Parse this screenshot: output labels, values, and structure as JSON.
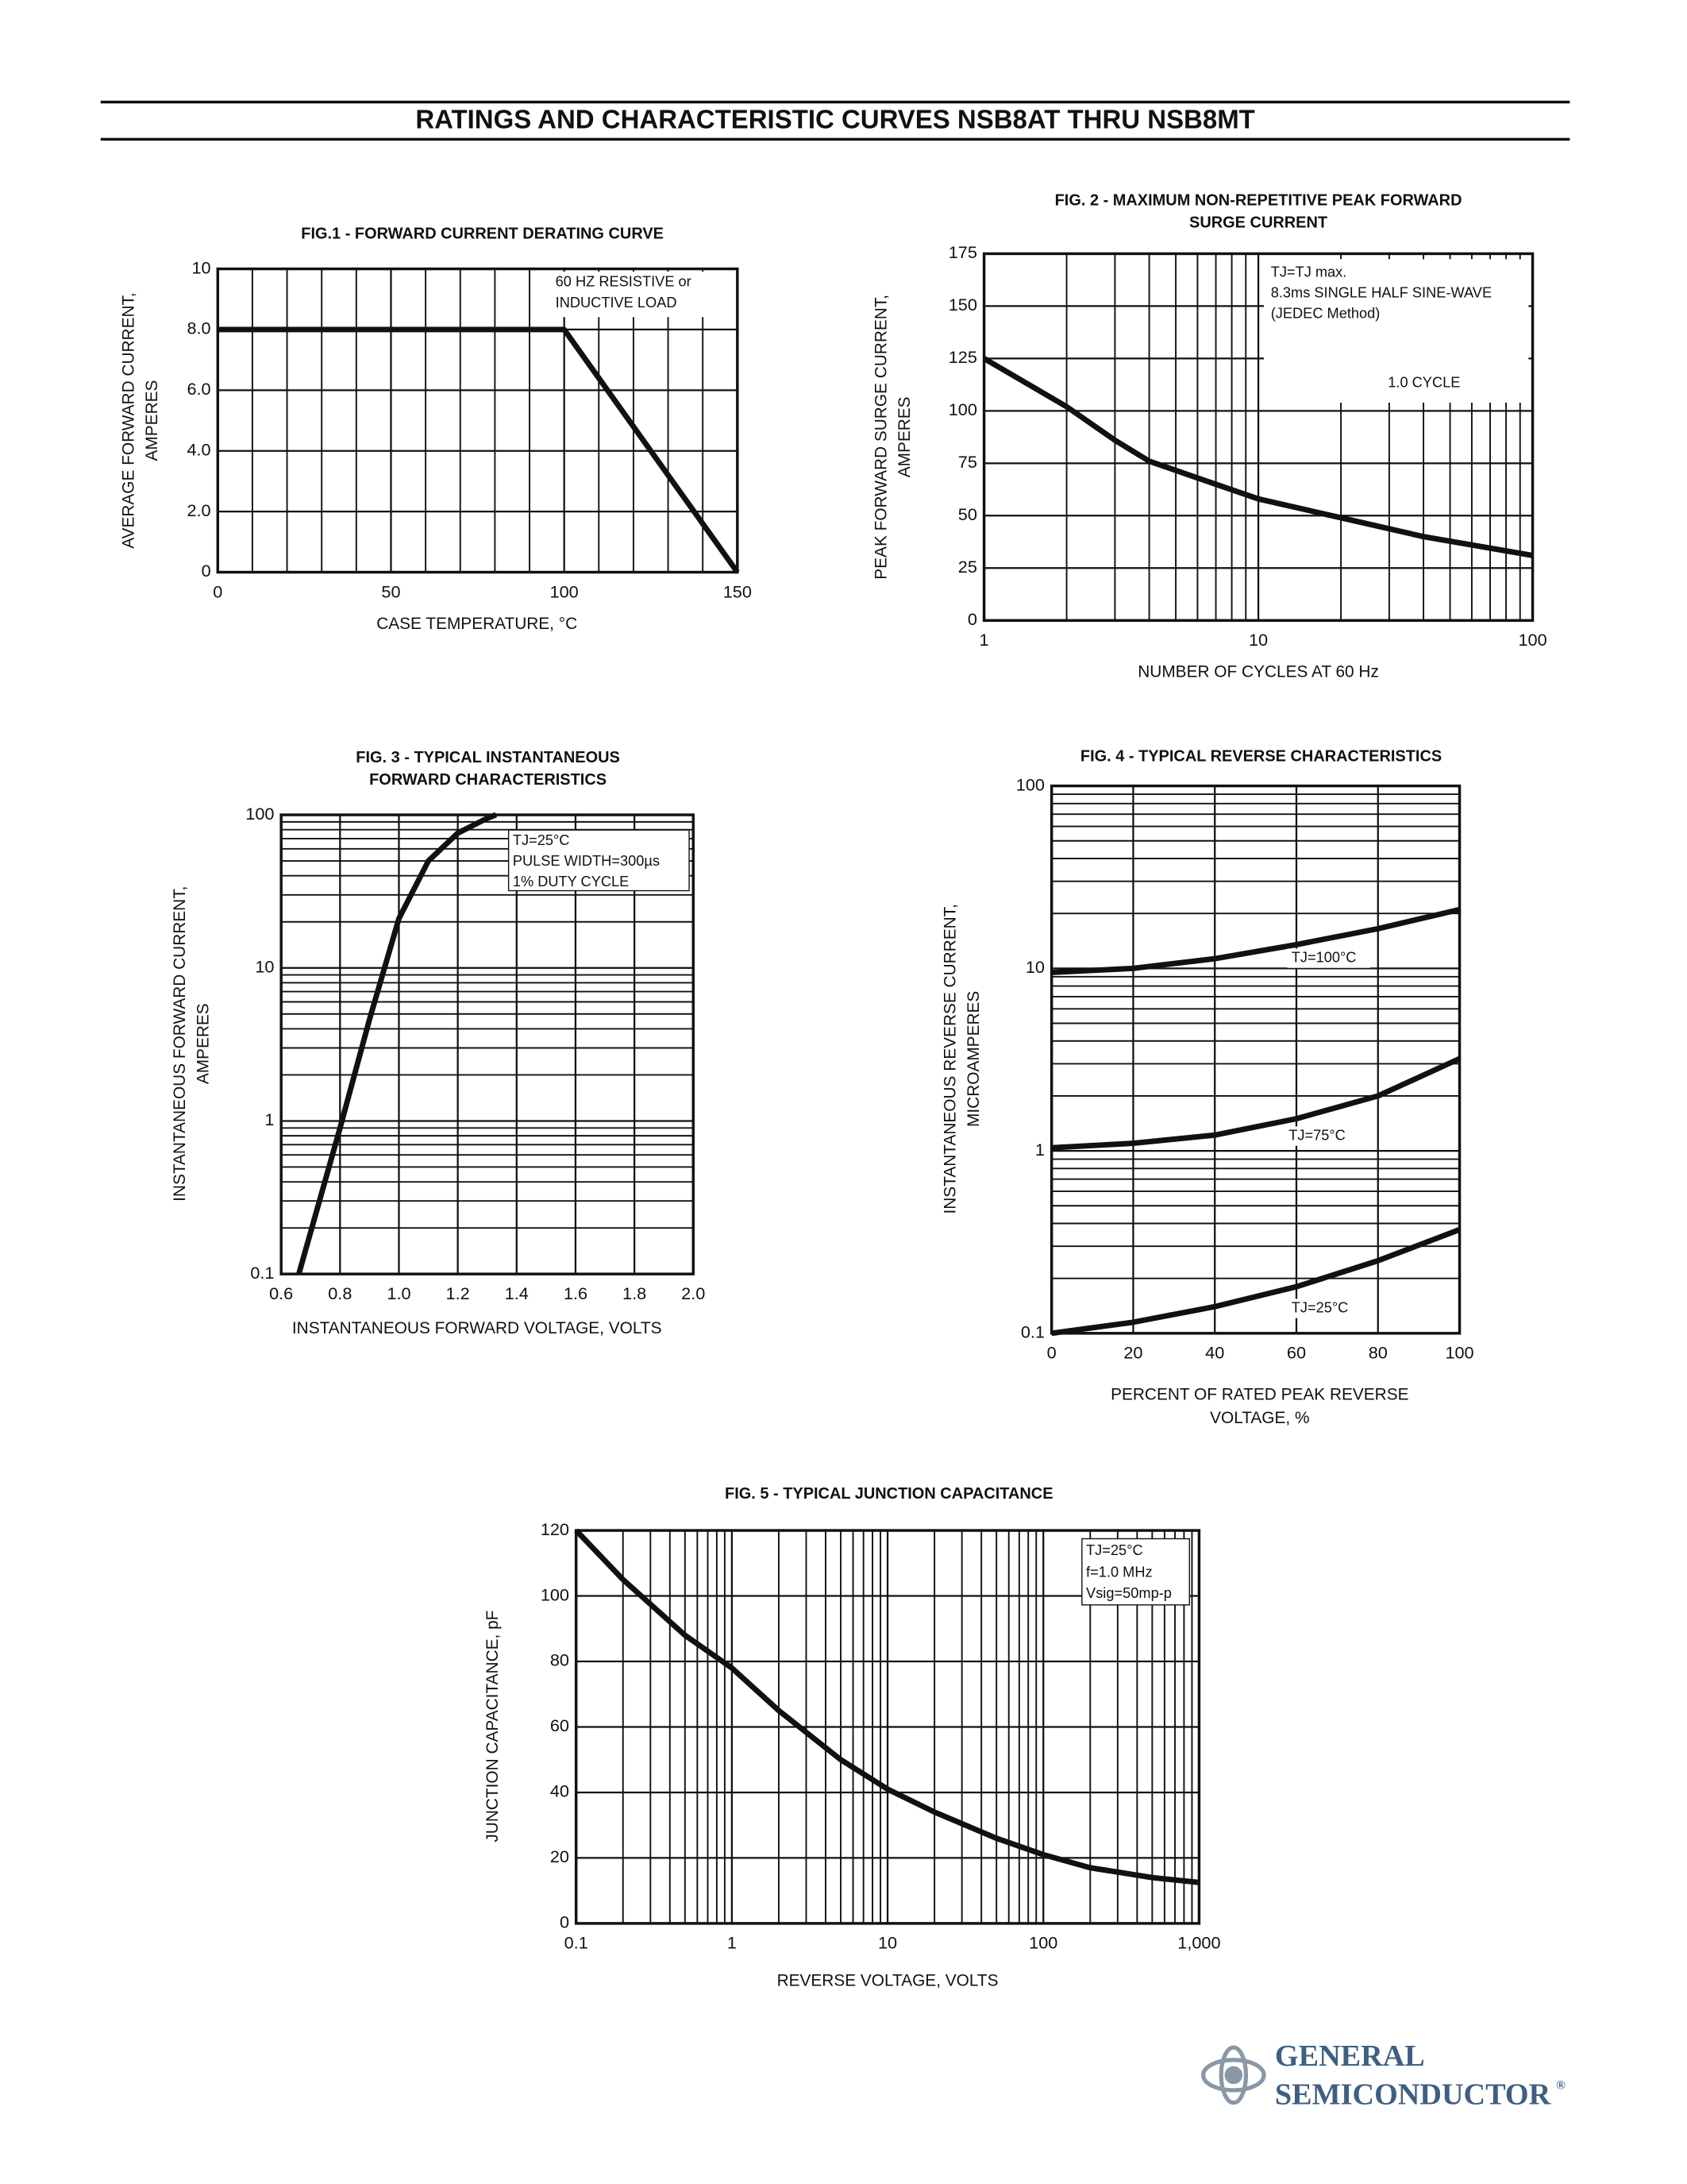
{
  "header": {
    "title": "RATINGS AND CHARACTERISTIC CURVES NSB8AT THRU NSB8MT"
  },
  "logo": {
    "line1": "GENERAL",
    "line2": "SEMICONDUCTOR",
    "mark": "®"
  },
  "chart_data": [
    {
      "type": "line",
      "title": [
        "FIG.1 - FORWARD CURRENT DERATING CURVE"
      ],
      "ylabel": [
        "AVERAGE FORWARD CURRENT,",
        "AMPERES"
      ],
      "xlabel": [
        "CASE TEMPERATURE, °C"
      ],
      "annotations": [
        "60 HZ RESISTIVE or",
        "INDUCTIVE LOAD"
      ],
      "x": [
        0,
        100,
        150
      ],
      "values": [
        8,
        8,
        0
      ],
      "color": "#111111",
      "xlim": [
        0,
        150
      ],
      "ylim": [
        0,
        10
      ],
      "xscale": "linear",
      "yscale": "linear",
      "xticks": [
        0,
        50,
        100,
        150
      ],
      "yticks": [
        0,
        {
          "value": 2,
          "label": "2.0"
        },
        {
          "value": 4,
          "label": "4.0"
        },
        {
          "value": 6,
          "label": "6.0"
        },
        {
          "value": 8,
          "label": "8.0"
        },
        10
      ],
      "xminor": [
        10,
        20,
        30,
        40,
        60,
        70,
        80,
        90,
        110,
        120,
        130,
        140
      ],
      "yminor": [],
      "grid": true
    },
    {
      "type": "line",
      "title": [
        "FIG. 2 - MAXIMUM NON-REPETITIVE PEAK FORWARD",
        "SURGE CURRENT"
      ],
      "ylabel": [
        "PEAK FORWARD SURGE CURRENT,",
        "AMPERES"
      ],
      "xlabel": [
        "NUMBER OF CYCLES AT 60 Hz"
      ],
      "annotations": [
        "TJ=TJ max.",
        "8.3ms SINGLE HALF SINE-WAVE",
        "(JEDEC Method)",
        "1.0 CYCLE"
      ],
      "x": [
        1,
        2,
        3,
        4,
        6,
        10,
        20,
        40,
        100
      ],
      "values": [
        125,
        102,
        86,
        76,
        68,
        58,
        49,
        40,
        31
      ],
      "color": "#111111",
      "xlim": [
        1,
        100
      ],
      "ylim": [
        0,
        175
      ],
      "xscale": "log",
      "yscale": "linear",
      "xticks": [
        1,
        10,
        100
      ],
      "yticks": [
        0,
        25,
        50,
        75,
        100,
        125,
        150,
        175
      ],
      "xminor": [
        2,
        3,
        4,
        5,
        6,
        7,
        8,
        9,
        20,
        30,
        40,
        50,
        60,
        70,
        80,
        90
      ],
      "yminor": [],
      "grid": true
    },
    {
      "type": "line",
      "title": [
        "FIG. 3 - TYPICAL INSTANTANEOUS",
        "FORWARD CHARACTERISTICS"
      ],
      "ylabel": [
        "INSTANTANEOUS FORWARD CURRENT,",
        "AMPERES"
      ],
      "xlabel": [
        "INSTANTANEOUS FORWARD VOLTAGE, VOLTS"
      ],
      "annotations": [
        "TJ=25°C",
        "PULSE WIDTH=300µs",
        "1% DUTY CYCLE"
      ],
      "x": [
        0.66,
        0.8,
        0.9,
        1.0,
        1.1,
        1.2,
        1.3,
        1.33
      ],
      "values": [
        0.1,
        0.9,
        4.6,
        21,
        50,
        76,
        95,
        100
      ],
      "color": "#111111",
      "xlim": [
        0.6,
        2.0
      ],
      "ylim": [
        0.1,
        100
      ],
      "xscale": "linear",
      "yscale": "log",
      "xticks": [
        0.6,
        0.8,
        {
          "value": 1,
          "label": "1.0"
        },
        1.2,
        1.4,
        1.6,
        1.8,
        {
          "value": 2,
          "label": "2.0"
        }
      ],
      "yticks": [
        0.1,
        1,
        10,
        100
      ],
      "xminor": [],
      "yminor": [
        0.2,
        0.3,
        0.4,
        0.5,
        0.6,
        0.7,
        0.8,
        0.9,
        2,
        3,
        4,
        5,
        6,
        7,
        8,
        9,
        20,
        30,
        40,
        50,
        60,
        70,
        80,
        90
      ],
      "grid": true
    },
    {
      "type": "line",
      "title": [
        "FIG. 4 - TYPICAL REVERSE CHARACTERISTICS"
      ],
      "ylabel": [
        "INSTANTANEOUS REVERSE CURRENT,",
        "MICROAMPERES"
      ],
      "xlabel": [
        "PERCENT OF RATED PEAK REVERSE",
        "VOLTAGE, %"
      ],
      "annotations": [],
      "x": [
        0,
        20,
        40,
        60,
        80,
        100
      ],
      "series": [
        {
          "name": "TJ=100°C",
          "color": "#111111",
          "values": [
            9.5,
            10,
            11.3,
            13.5,
            16.5,
            21
          ]
        },
        {
          "name": "TJ=75°C",
          "color": "#111111",
          "values": [
            1.04,
            1.1,
            1.22,
            1.5,
            2,
            3.2
          ]
        },
        {
          "name": "TJ=25°C",
          "color": "#111111",
          "values": [
            0.1,
            0.115,
            0.14,
            0.18,
            0.25,
            0.37
          ]
        }
      ],
      "xlim": [
        0,
        100
      ],
      "ylim": [
        0.1,
        100
      ],
      "xscale": "linear",
      "yscale": "log",
      "xticks": [
        0,
        20,
        40,
        60,
        80,
        100
      ],
      "yticks": [
        0.1,
        1,
        10,
        100
      ],
      "xminor": [],
      "yminor": [
        0.2,
        0.3,
        0.4,
        0.5,
        0.6,
        0.7,
        0.8,
        0.9,
        2,
        3,
        4,
        5,
        6,
        7,
        8,
        9,
        20,
        30,
        40,
        50,
        60,
        70,
        80,
        90
      ],
      "grid": true
    },
    {
      "type": "line",
      "title": [
        "FIG. 5 - TYPICAL JUNCTION CAPACITANCE"
      ],
      "ylabel": [
        "JUNCTION CAPACITANCE, pF"
      ],
      "xlabel": [
        "REVERSE VOLTAGE, VOLTS"
      ],
      "annotations": [
        "TJ=25°C",
        "f=1.0 MHz",
        "Vsig=50mp-p"
      ],
      "x": [
        0.1,
        0.2,
        0.5,
        1,
        2,
        5,
        10,
        20,
        50,
        100,
        200,
        500,
        1000
      ],
      "values": [
        120,
        105,
        88,
        78,
        65,
        50,
        41,
        34,
        26,
        21,
        17,
        14,
        12.5
      ],
      "color": "#111111",
      "xlim": [
        0.1,
        1000
      ],
      "ylim": [
        0,
        120
      ],
      "xscale": "log",
      "yscale": "linear",
      "xticks": [
        0.1,
        1,
        10,
        100,
        {
          "value": 1000,
          "label": "1,000"
        }
      ],
      "yticks": [
        0,
        20,
        40,
        60,
        80,
        100,
        120
      ],
      "xminor": [
        0.2,
        0.3,
        0.4,
        0.5,
        0.6,
        0.7,
        0.8,
        0.9,
        2,
        3,
        4,
        5,
        6,
        7,
        8,
        9,
        20,
        30,
        40,
        50,
        60,
        70,
        80,
        90,
        200,
        300,
        400,
        500,
        600,
        700,
        800,
        900
      ],
      "yminor": [],
      "grid": true
    }
  ]
}
